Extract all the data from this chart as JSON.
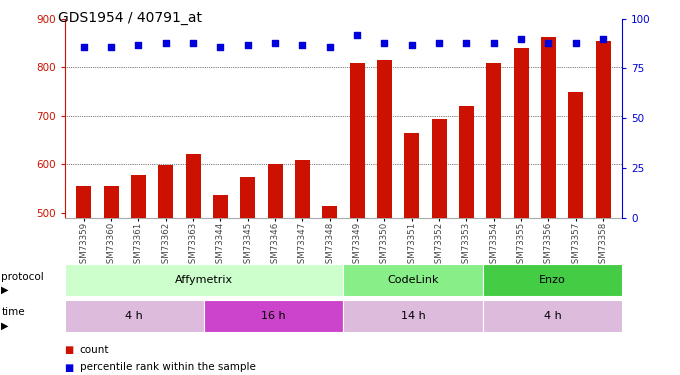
{
  "title": "GDS1954 / 40791_at",
  "samples": [
    "GSM73359",
    "GSM73360",
    "GSM73361",
    "GSM73362",
    "GSM73363",
    "GSM73344",
    "GSM73345",
    "GSM73346",
    "GSM73347",
    "GSM73348",
    "GSM73349",
    "GSM73350",
    "GSM73351",
    "GSM73352",
    "GSM73353",
    "GSM73354",
    "GSM73355",
    "GSM73356",
    "GSM73357",
    "GSM73358"
  ],
  "counts": [
    554,
    554,
    578,
    598,
    620,
    536,
    574,
    601,
    608,
    513,
    808,
    815,
    664,
    693,
    720,
    808,
    840,
    862,
    748,
    855
  ],
  "percentile_ranks": [
    86,
    86,
    87,
    88,
    88,
    86,
    87,
    88,
    87,
    86,
    92,
    88,
    87,
    88,
    88,
    88,
    90,
    88,
    88,
    90
  ],
  "ylim_left": [
    490,
    900
  ],
  "ylim_right": [
    0,
    100
  ],
  "yticks_left": [
    500,
    600,
    700,
    800,
    900
  ],
  "yticks_right": [
    0,
    25,
    50,
    75,
    100
  ],
  "bar_color": "#cc1100",
  "dot_color": "#0000dd",
  "protocol_groups": [
    {
      "label": "Affymetrix",
      "start": 0,
      "end": 10,
      "color": "#ccffcc"
    },
    {
      "label": "CodeLink",
      "start": 10,
      "end": 15,
      "color": "#88ee88"
    },
    {
      "label": "Enzo",
      "start": 15,
      "end": 20,
      "color": "#44cc44"
    }
  ],
  "time_groups": [
    {
      "label": "4 h",
      "start": 0,
      "end": 5,
      "color": "#ddbbdd"
    },
    {
      "label": "16 h",
      "start": 5,
      "end": 10,
      "color": "#cc44cc"
    },
    {
      "label": "14 h",
      "start": 10,
      "end": 15,
      "color": "#ddbbdd"
    },
    {
      "label": "4 h",
      "start": 15,
      "end": 20,
      "color": "#ddbbdd"
    }
  ],
  "legend_count_label": "count",
  "legend_pct_label": "percentile rank within the sample",
  "xlabel_protocol": "protocol",
  "xlabel_time": "time",
  "bg_color": "#ffffff",
  "tick_label_color_left": "#cc1100",
  "tick_label_color_right": "#0000dd"
}
